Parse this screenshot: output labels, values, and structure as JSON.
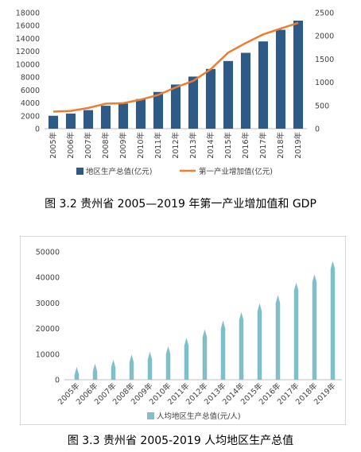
{
  "captions": {
    "fig1": "图 3.2 贵州省 2005—2019 年第一产业增加值和 GDP",
    "fig2": "图 3.3 贵州省 2005-2019 人均地区生产总值"
  },
  "chart_data": [
    {
      "type": "bar+line",
      "categories": [
        "2005年",
        "2006年",
        "2007年",
        "2008年",
        "2009年",
        "2010年",
        "2011年",
        "2012年",
        "2013年",
        "2014年",
        "2015年",
        "2016年",
        "2017年",
        "2018年",
        "2019年"
      ],
      "series": [
        {
          "name": "地区生产总值(亿元)",
          "type": "bar",
          "axis": "left",
          "color": "#2e5a87",
          "values": [
            2005,
            2339,
            2884,
            3562,
            3913,
            4602,
            5702,
            6852,
            8087,
            9266,
            10503,
            11777,
            13541,
            15353,
            16769
          ]
        },
        {
          "name": "第一产业增加值(亿元)",
          "type": "line",
          "axis": "right",
          "color": "#ed7d31",
          "values": [
            368,
            383,
            447,
            540,
            550,
            626,
            727,
            891,
            1030,
            1281,
            1641,
            1846,
            2032,
            2159,
            2280
          ]
        }
      ],
      "y_left": {
        "min": 0,
        "max": 18000,
        "ticks": [
          0,
          2000,
          4000,
          6000,
          8000,
          10000,
          12000,
          14000,
          16000,
          18000
        ]
      },
      "y_right": {
        "min": 0,
        "max": 2500,
        "ticks": [
          0,
          500,
          1000,
          1500,
          2000,
          2500
        ]
      },
      "legend": "bottom",
      "grid": false
    },
    {
      "type": "bar",
      "categories": [
        "2005年",
        "2006年",
        "2007年",
        "2008年",
        "2009年",
        "2010年",
        "2011年",
        "2012年",
        "2013年",
        "2014年",
        "2015年",
        "2016年",
        "2017年",
        "2018年",
        "2019年"
      ],
      "series": [
        {
          "name": "人均地区生产总值(元/人)",
          "color": "#7fc0c8",
          "values": [
            5052,
            6305,
            7878,
            9855,
            10971,
            13119,
            16413,
            19710,
            23151,
            26437,
            29847,
            33127,
            37956,
            41244,
            46433
          ]
        }
      ],
      "y": {
        "min": 0,
        "max": 50000,
        "ticks": [
          0,
          10000,
          20000,
          30000,
          40000,
          50000
        ]
      },
      "legend": "bottom",
      "grid": false
    }
  ]
}
